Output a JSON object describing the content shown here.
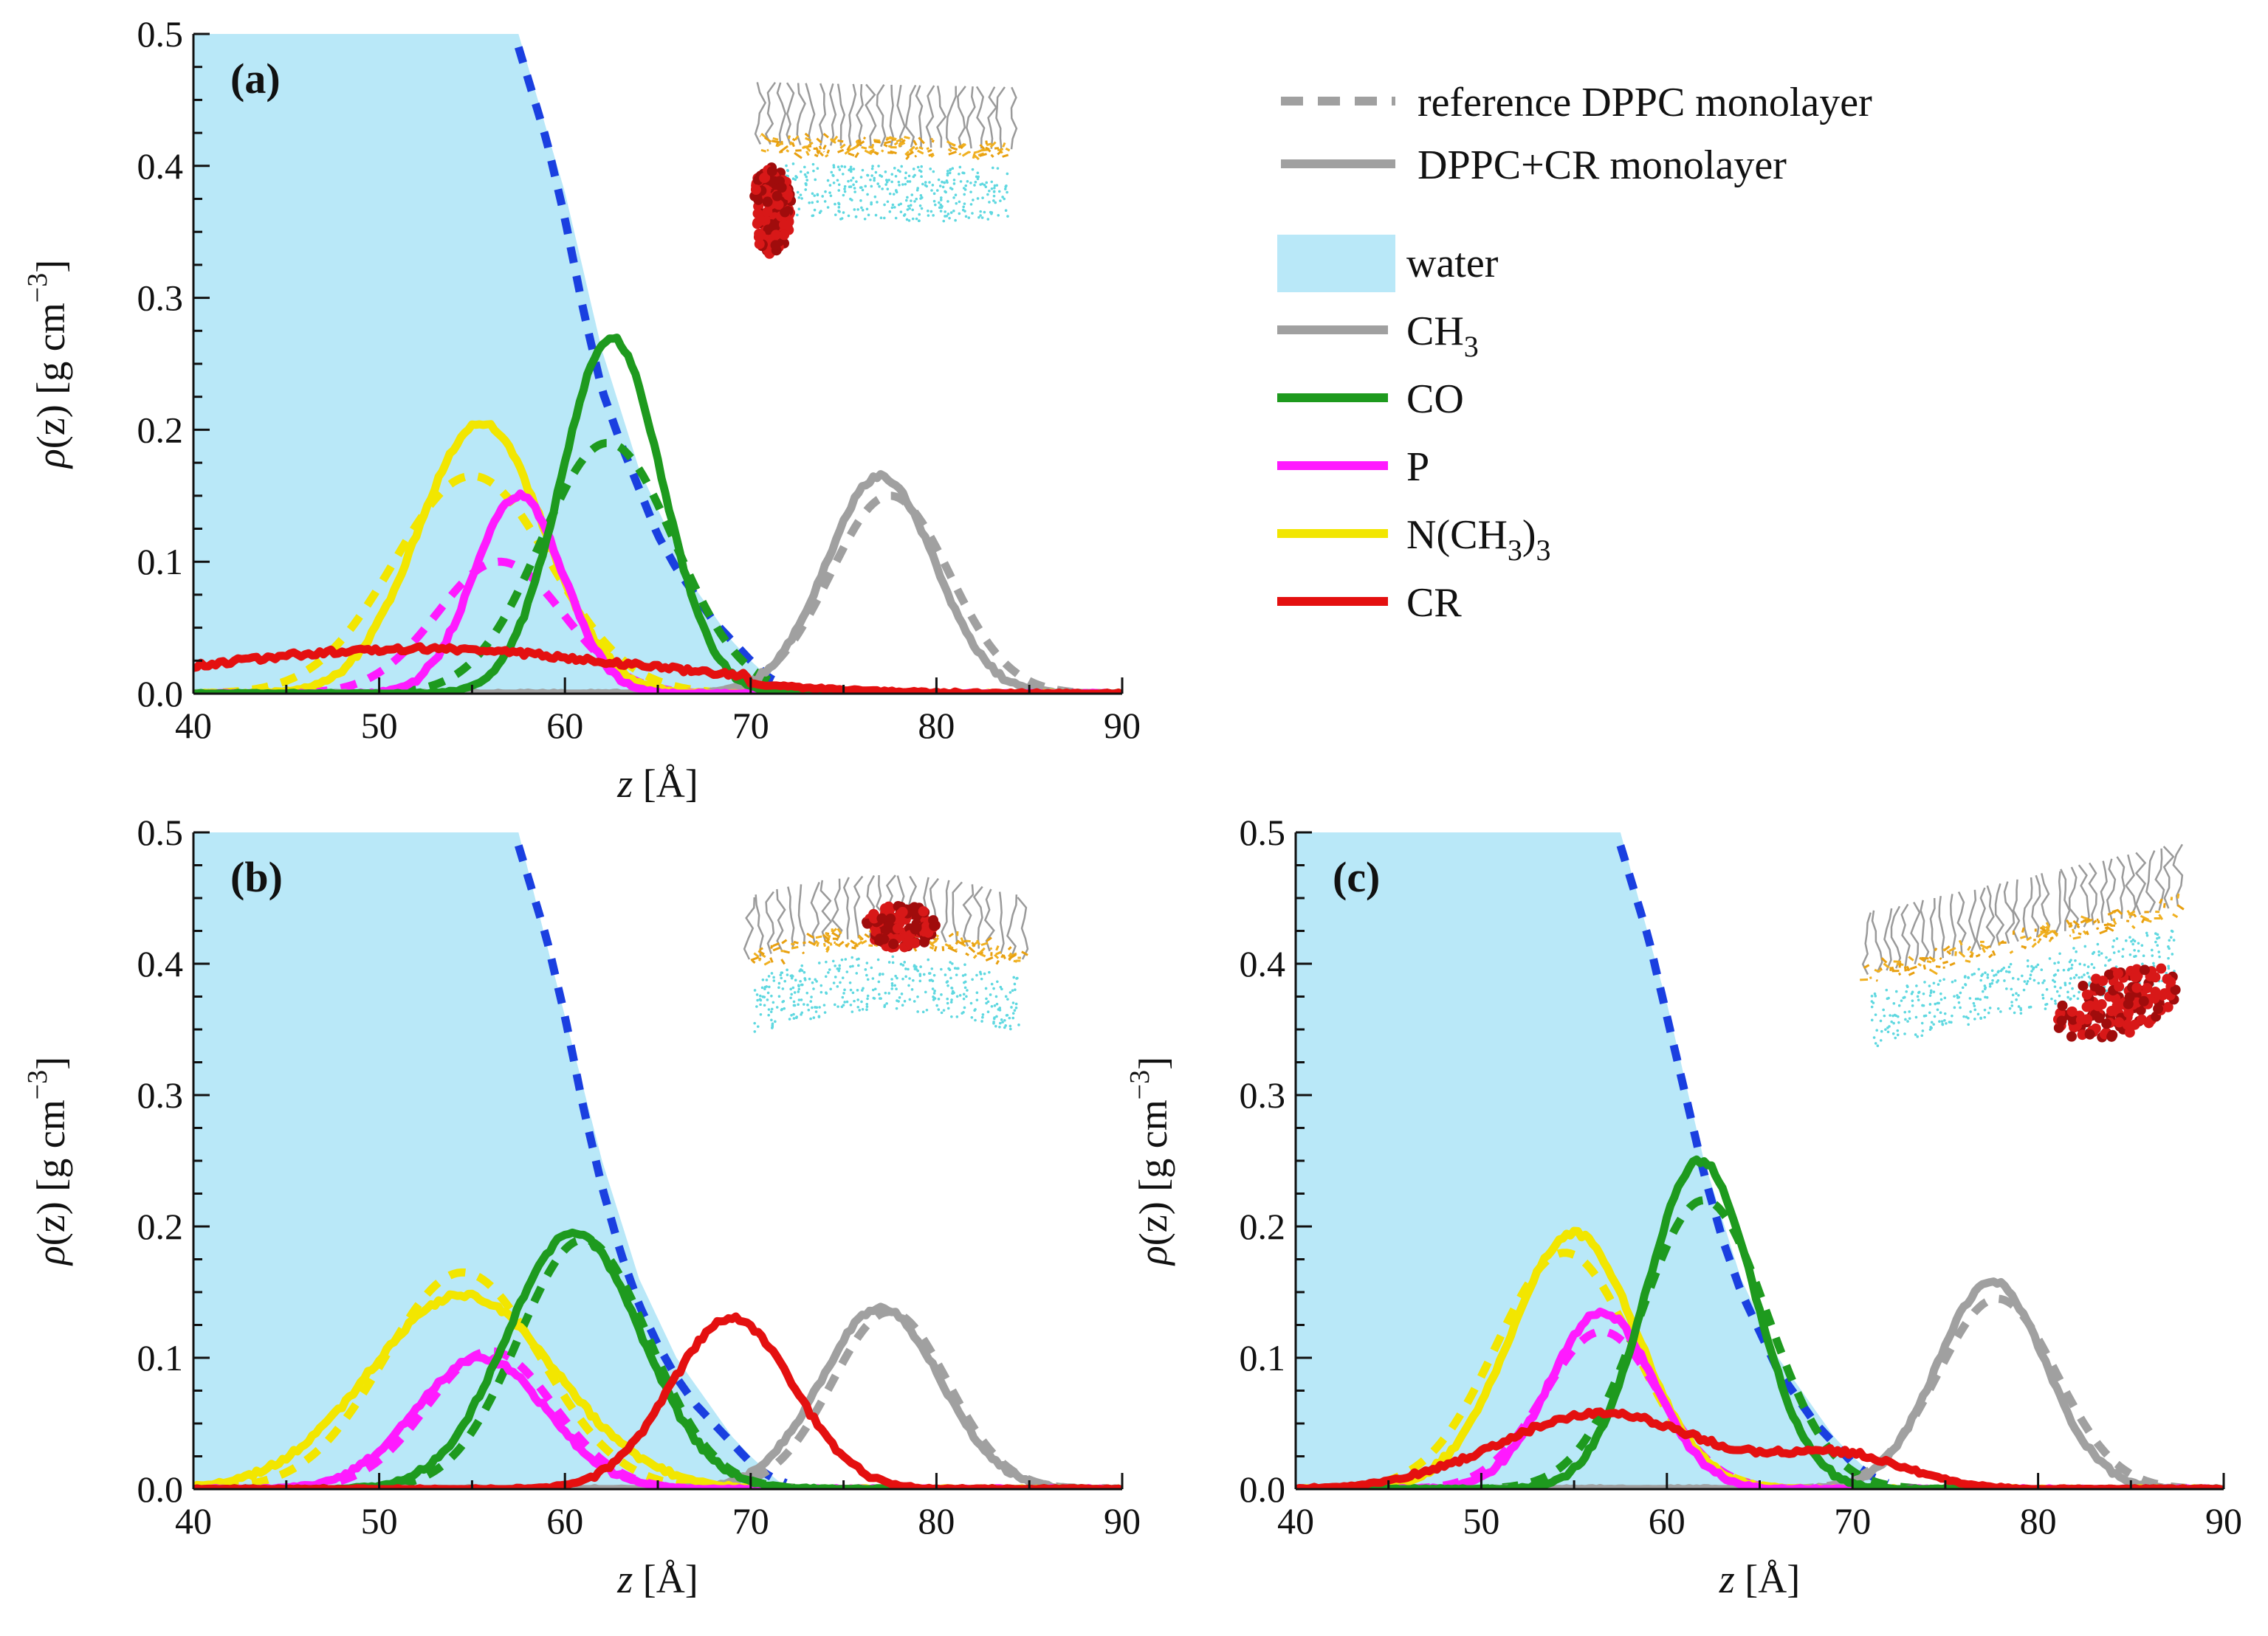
{
  "legend": {
    "styles": [
      {
        "label": "reference DPPC monolayer",
        "dash": true
      },
      {
        "label": "DPPC+CR monolayer",
        "dash": false
      }
    ],
    "water": {
      "label": "water",
      "color": "#b9e8f8"
    },
    "species": [
      {
        "key": "CH3",
        "base": "CH",
        "sub": "3",
        "after": "",
        "color": "#a0a0a0"
      },
      {
        "key": "CO",
        "base": "CO",
        "sub": "",
        "after": "",
        "color": "#1e9a1e"
      },
      {
        "key": "P",
        "base": "P",
        "sub": "",
        "after": "",
        "color": "#ff1aff"
      },
      {
        "key": "NCH33",
        "base": "N(CH",
        "sub": "3",
        "after": ")",
        "sub2": "3",
        "color": "#f2e600"
      },
      {
        "key": "CR",
        "base": "CR",
        "sub": "",
        "after": "",
        "color": "#e41010"
      }
    ],
    "water_edge_color": "#1a3fe0"
  },
  "axis_text": {
    "x_label": "z [Å]",
    "y_label_prefix": "ρ(z) [g cm",
    "y_label_exp": "−3",
    "y_label_suffix": "]"
  },
  "chart_data": [
    {
      "type": "line",
      "panel": "(a)",
      "xlim": [
        40,
        90
      ],
      "ylim": [
        0,
        0.5
      ],
      "xticks": [
        40,
        50,
        60,
        70,
        80,
        90
      ],
      "yticks": [
        0.0,
        0.1,
        0.2,
        0.3,
        0.4,
        0.5
      ],
      "water": {
        "z": [
          40,
          57.5,
          60,
          62,
          64,
          66,
          67,
          68,
          69,
          70,
          71,
          72
        ],
        "rho": [
          0.5,
          0.5,
          0.38,
          0.26,
          0.17,
          0.11,
          0.08,
          0.06,
          0.04,
          0.025,
          0.012,
          0.0
        ]
      },
      "water_ref": {
        "z": [
          57.5,
          59,
          60,
          61,
          62,
          63,
          64,
          65,
          66,
          67,
          68,
          69,
          70,
          71,
          72
        ],
        "rho": [
          0.49,
          0.42,
          0.36,
          0.29,
          0.23,
          0.19,
          0.155,
          0.12,
          0.095,
          0.075,
          0.055,
          0.04,
          0.025,
          0.012,
          0.005
        ]
      },
      "peaks": [
        {
          "species": "CO",
          "solid": {
            "mu": 62.5,
            "sigma": 2.7,
            "amp": 0.27
          },
          "ref": {
            "mu": 62.3,
            "sigma": 3.6,
            "amp": 0.19
          }
        },
        {
          "species": "P",
          "solid": {
            "mu": 57.5,
            "sigma": 2.4,
            "amp": 0.15
          },
          "ref": {
            "mu": 56.5,
            "sigma": 3.4,
            "amp": 0.1
          }
        },
        {
          "species": "NCH33",
          "solid": {
            "mu": 55.5,
            "sigma": 3.4,
            "amp": 0.205
          },
          "ref": {
            "mu": 55.0,
            "sigma": 4.2,
            "amp": 0.165
          }
        },
        {
          "species": "CH3",
          "solid": {
            "mu": 77.0,
            "sigma": 2.9,
            "amp": 0.165
          },
          "ref": {
            "mu": 77.5,
            "sigma": 3.2,
            "amp": 0.15
          }
        },
        {
          "species": "CR",
          "solid": {
            "mu": 52.0,
            "sigma": 11.0,
            "amp": 0.028
          },
          "ref": null
        }
      ],
      "inset": {
        "protein_position": "side"
      }
    },
    {
      "type": "line",
      "panel": "(b)",
      "xlim": [
        40,
        90
      ],
      "ylim": [
        0,
        0.5
      ],
      "xticks": [
        40,
        50,
        60,
        70,
        80,
        90
      ],
      "yticks": [
        0.0,
        0.1,
        0.2,
        0.3,
        0.4,
        0.5
      ],
      "water": {
        "z": [
          40,
          57.5,
          60,
          62,
          64,
          66,
          68,
          69,
          70,
          71,
          72
        ],
        "rho": [
          0.5,
          0.5,
          0.36,
          0.25,
          0.16,
          0.1,
          0.06,
          0.04,
          0.025,
          0.012,
          0.0
        ]
      },
      "water_ref": {
        "z": [
          57.5,
          59,
          60,
          61,
          62,
          63,
          64,
          65,
          66,
          67,
          68,
          69,
          70,
          71,
          72
        ],
        "rho": [
          0.49,
          0.42,
          0.36,
          0.29,
          0.23,
          0.18,
          0.14,
          0.11,
          0.085,
          0.065,
          0.05,
          0.035,
          0.02,
          0.01,
          0.004
        ]
      },
      "peaks": [
        {
          "species": "CO",
          "solid": {
            "mu": 60.5,
            "sigma": 3.6,
            "amp": 0.195
          },
          "ref": {
            "mu": 61.0,
            "sigma": 3.5,
            "amp": 0.19
          }
        },
        {
          "species": "P",
          "solid": {
            "mu": 55.5,
            "sigma": 3.5,
            "amp": 0.1
          },
          "ref": {
            "mu": 56.0,
            "sigma": 3.4,
            "amp": 0.105
          }
        },
        {
          "species": "NCH33",
          "solid": {
            "mu": 54.5,
            "sigma": 5.0,
            "amp": 0.148
          },
          "ref": {
            "mu": 54.5,
            "sigma": 4.2,
            "amp": 0.165
          }
        },
        {
          "species": "CH3",
          "solid": {
            "mu": 77.0,
            "sigma": 3.2,
            "amp": 0.138
          },
          "ref": {
            "mu": 77.5,
            "sigma": 3.1,
            "amp": 0.135
          }
        },
        {
          "species": "CR",
          "solid": {
            "mu": 69.0,
            "sigma": 3.3,
            "amp": 0.13
          },
          "ref": null
        }
      ],
      "inset": {
        "protein_position": "top"
      }
    },
    {
      "type": "line",
      "panel": "(c)",
      "xlim": [
        40,
        90
      ],
      "ylim": [
        0,
        0.5
      ],
      "xticks": [
        40,
        50,
        60,
        70,
        80,
        90
      ],
      "yticks": [
        0.0,
        0.1,
        0.2,
        0.3,
        0.4,
        0.5
      ],
      "water": {
        "z": [
          40,
          57.5,
          60,
          62,
          64,
          66,
          67,
          68,
          69,
          70,
          71,
          72
        ],
        "rho": [
          0.5,
          0.5,
          0.37,
          0.25,
          0.16,
          0.1,
          0.08,
          0.06,
          0.04,
          0.025,
          0.012,
          0.0
        ]
      },
      "water_ref": {
        "z": [
          57.5,
          59,
          60,
          61,
          62,
          63,
          64,
          65,
          66,
          67,
          68,
          69,
          70,
          71,
          72
        ],
        "rho": [
          0.49,
          0.42,
          0.36,
          0.3,
          0.24,
          0.19,
          0.15,
          0.12,
          0.09,
          0.07,
          0.05,
          0.035,
          0.02,
          0.01,
          0.004
        ]
      },
      "peaks": [
        {
          "species": "CO",
          "solid": {
            "mu": 61.8,
            "sigma": 2.9,
            "amp": 0.25
          },
          "ref": {
            "mu": 62.0,
            "sigma": 3.4,
            "amp": 0.22
          }
        },
        {
          "species": "P",
          "solid": {
            "mu": 56.5,
            "sigma": 2.8,
            "amp": 0.135
          },
          "ref": {
            "mu": 56.5,
            "sigma": 3.1,
            "amp": 0.12
          }
        },
        {
          "species": "NCH33",
          "solid": {
            "mu": 55.0,
            "sigma": 3.4,
            "amp": 0.195
          },
          "ref": {
            "mu": 54.5,
            "sigma": 3.7,
            "amp": 0.18
          }
        },
        {
          "species": "CH3",
          "solid": {
            "mu": 77.5,
            "sigma": 2.9,
            "amp": 0.158
          },
          "ref": {
            "mu": 77.8,
            "sigma": 3.2,
            "amp": 0.145
          }
        },
        {
          "species": "CR",
          "solid": {
            "mu": 56.5,
            "sigma": 5.5,
            "amp": 0.058
          },
          "ref": null,
          "extra": {
            "mu": 69.5,
            "sigma": 3.5,
            "amp": 0.025
          }
        }
      ],
      "inset": {
        "protein_position": "right"
      }
    }
  ]
}
